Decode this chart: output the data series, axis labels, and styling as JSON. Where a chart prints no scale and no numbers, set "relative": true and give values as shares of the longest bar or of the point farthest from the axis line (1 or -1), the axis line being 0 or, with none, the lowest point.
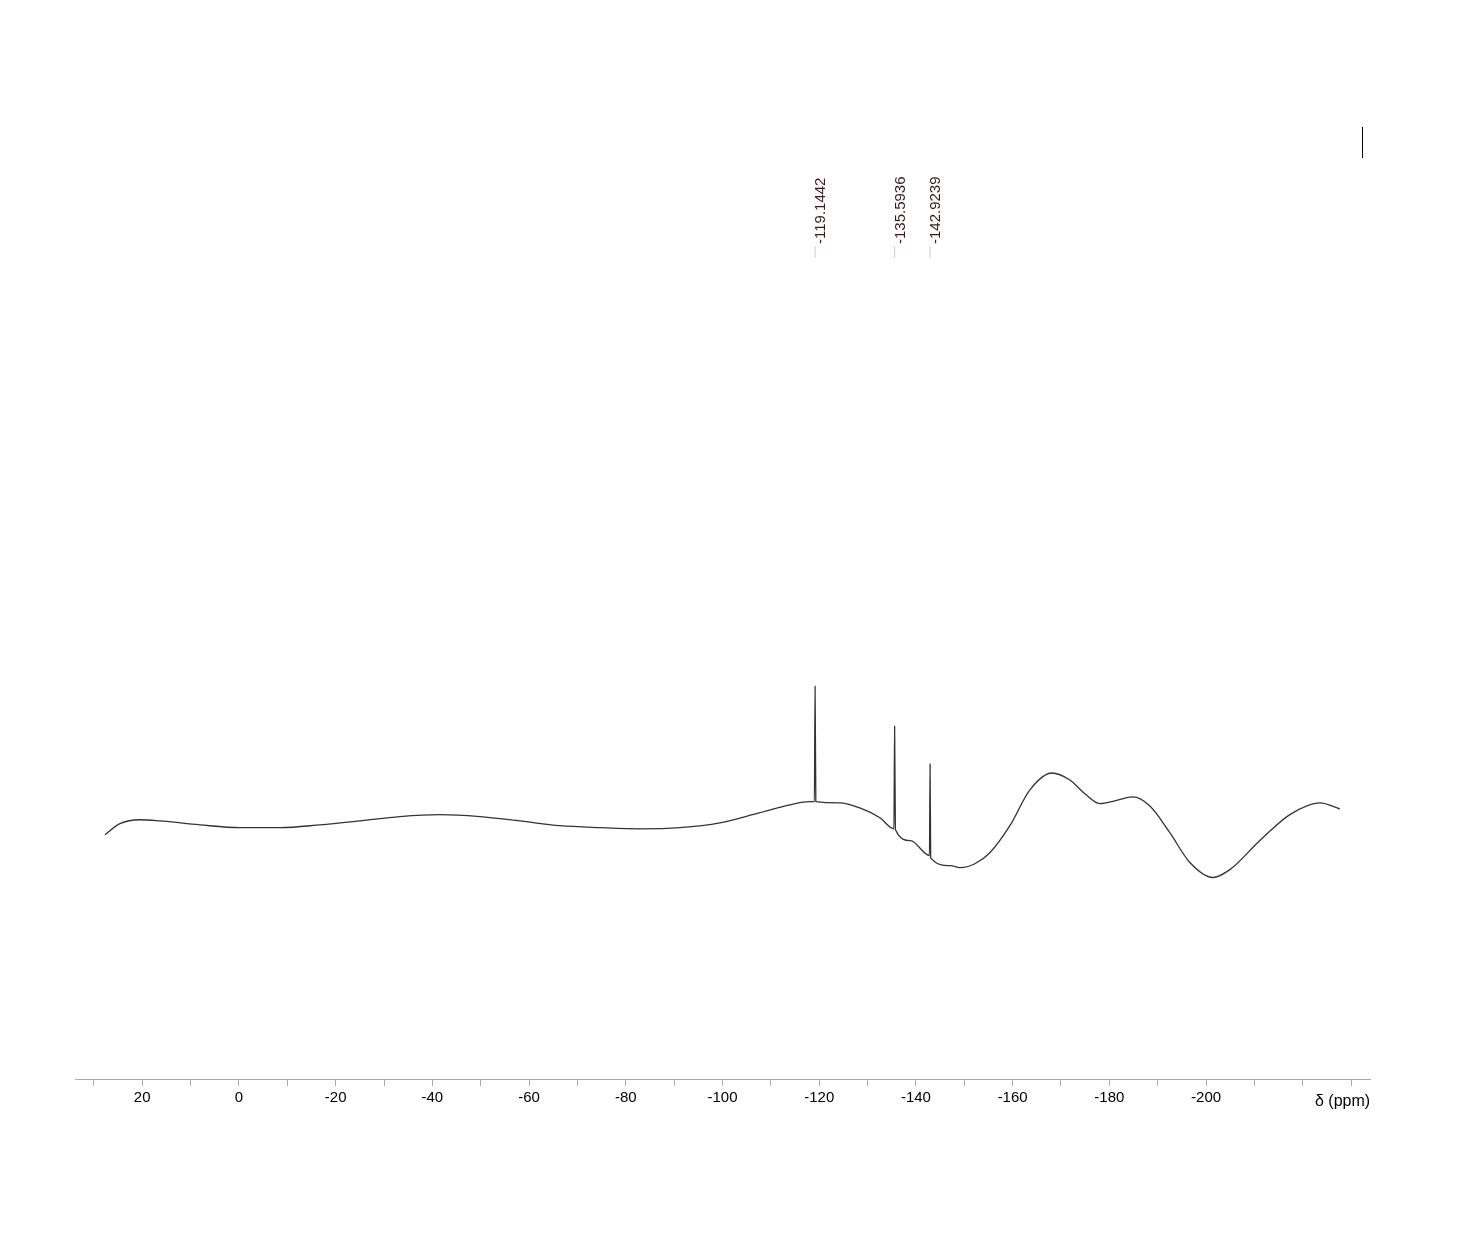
{
  "chart_data": {
    "type": "line",
    "xlabel": "δ (ppm)",
    "relative": true,
    "xlim": [
      33.9,
      -233.9
    ],
    "xticks": [
      {
        "value": 30,
        "label": null
      },
      20,
      {
        "value": 10,
        "label": null
      },
      0,
      {
        "value": -10,
        "label": null
      },
      -20,
      {
        "value": -30,
        "label": null
      },
      -40,
      {
        "value": -50,
        "label": null
      },
      -60,
      {
        "value": -70,
        "label": null
      },
      -80,
      {
        "value": -90,
        "label": null
      },
      -100,
      {
        "value": -110,
        "label": null
      },
      -120,
      {
        "value": -130,
        "label": null
      },
      -140,
      {
        "value": -150,
        "label": null
      },
      -160,
      {
        "value": -170,
        "label": null
      },
      -180,
      {
        "value": -190,
        "label": null
      },
      -200,
      {
        "value": -210,
        "label": null
      },
      {
        "value": -220,
        "label": null
      },
      {
        "value": -230,
        "label": null
      }
    ],
    "x": [
      27.71,
      24.61,
      20.47,
      16.34,
      8.06,
      -0.21,
      -8.48,
      -16.75,
      -25.02,
      -33.29,
      -41.56,
      -49.83,
      -58.11,
      -66.38,
      -74.65,
      -82.92,
      -91.19,
      -99.46,
      -107.73,
      -113.94,
      -118.07,
      -119.0,
      -119.1442,
      -119.3,
      -124.28,
      -128.41,
      -132.55,
      -135.45,
      -135.5936,
      -135.75,
      -138.87,
      -142.8,
      -142.9239,
      -143.05,
      -147.17,
      -149.09,
      -152.19,
      -155.29,
      -159.43,
      -163.57,
      -168.11,
      -171.84,
      -174.94,
      -178.04,
      -181.14,
      -184.86,
      -188.38,
      -192.51,
      -196.65,
      -201.41,
      -204.92,
      -211.13,
      -217.33,
      -223.53,
      -227.67
    ],
    "series": [
      {
        "color": "#333333",
        "values": [
          0.622,
          0.65,
          0.66,
          0.657,
          0.647,
          0.64,
          0.64,
          0.647,
          0.657,
          0.668,
          0.673,
          0.668,
          0.657,
          0.645,
          0.64,
          0.637,
          0.64,
          0.652,
          0.678,
          0.698,
          0.706,
          0.706,
          1.0,
          0.706,
          0.703,
          0.69,
          0.665,
          0.637,
          0.898,
          0.635,
          0.607,
          0.569,
          0.802,
          0.563,
          0.543,
          0.538,
          0.548,
          0.576,
          0.645,
          0.736,
          0.779,
          0.761,
          0.726,
          0.701,
          0.708,
          0.718,
          0.695,
          0.627,
          0.551,
          0.513,
          0.533,
          0.607,
          0.673,
          0.703,
          0.688
        ]
      }
    ],
    "annotations": [
      {
        "text": "-119.1442",
        "x": -119.1442
      },
      {
        "text": "-135.5936",
        "x": -135.5936
      },
      {
        "text": "-142.9239",
        "x": -142.9239
      }
    ],
    "grid": false,
    "legend": false,
    "tick_labels": "x",
    "marker": "none",
    "line_style": "solid"
  }
}
